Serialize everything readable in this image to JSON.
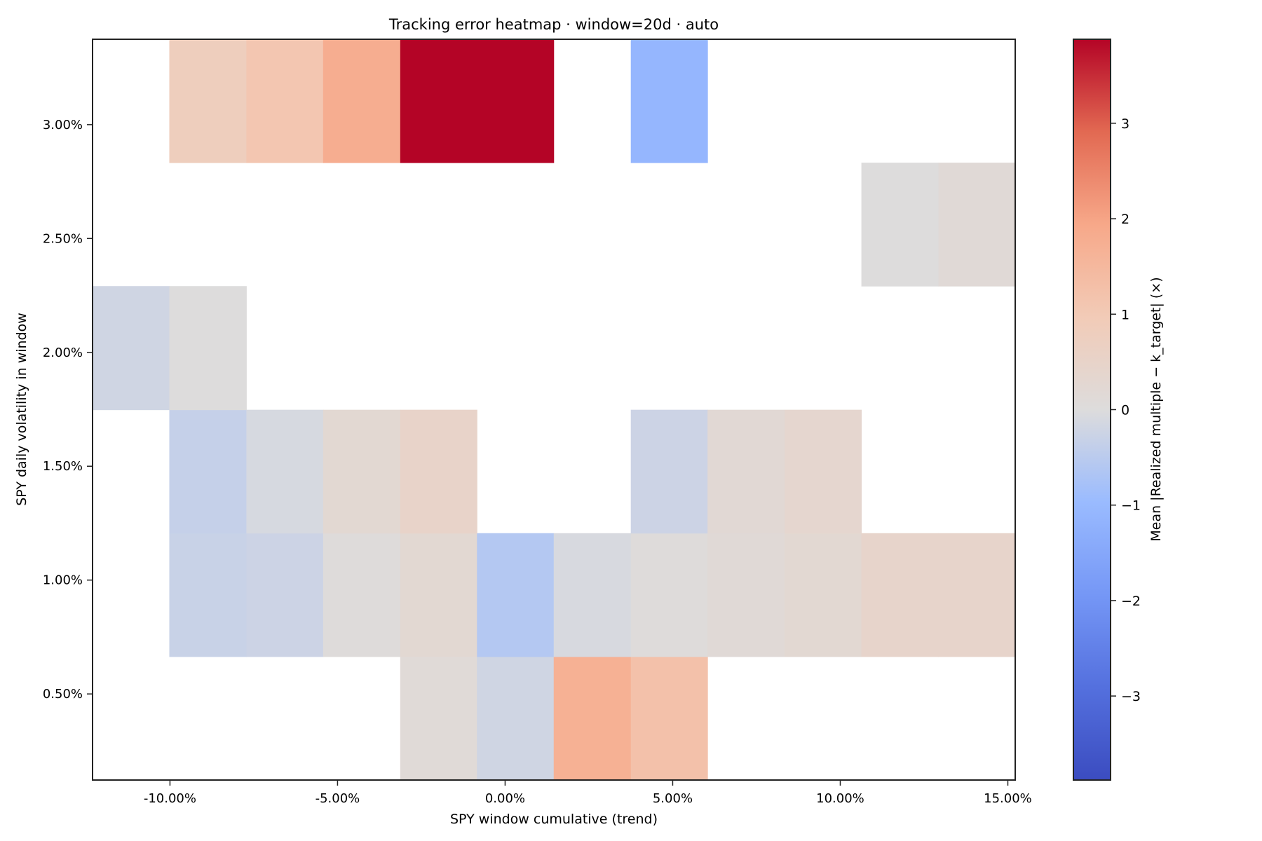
{
  "chart_data": {
    "type": "heatmap",
    "title": "Tracking error heatmap · window=20d · auto",
    "xlabel": "SPY window cumulative (trend)",
    "ylabel": "SPY daily volatility in window",
    "colorbar_label": "Mean |Realized multiple − k_target| (×)",
    "colormap": "coolwarm",
    "xlim": [
      -12.31,
      15.22
    ],
    "ylim": [
      0.122,
      3.375
    ],
    "clim": [
      -3.88,
      3.88
    ],
    "x_ticks": [
      -10,
      -5,
      0,
      5,
      10,
      15
    ],
    "x_tick_labels": [
      "-10.00%",
      "-5.00%",
      "0.00%",
      "5.00%",
      "10.00%",
      "15.00%"
    ],
    "y_ticks": [
      0.5,
      1.0,
      1.5,
      2.0,
      2.5,
      3.0
    ],
    "y_tick_labels": [
      "0.50%",
      "1.00%",
      "1.50%",
      "2.00%",
      "2.50%",
      "3.00%"
    ],
    "colorbar_ticks": [
      -3,
      -2,
      -1,
      0,
      1,
      2,
      3
    ],
    "colorbar_tick_labels": [
      "−3",
      "−2",
      "−1",
      "0",
      "1",
      "2",
      "3"
    ],
    "x_bin_edges": [
      -12.31,
      -10.02,
      -7.72,
      -5.43,
      -3.13,
      -0.84,
      1.45,
      3.75,
      6.04,
      8.34,
      10.63,
      12.93,
      15.22
    ],
    "y_bin_edges": [
      0.122,
      0.664,
      1.206,
      1.748,
      2.291,
      2.833,
      3.375
    ],
    "values": [
      [
        null,
        null,
        null,
        null,
        0.12,
        -0.2,
        1.7,
        1.25,
        null,
        null,
        null,
        null
      ],
      [
        null,
        -0.3,
        -0.25,
        0.05,
        0.25,
        -0.6,
        -0.08,
        0.05,
        0.15,
        0.25,
        0.45,
        0.45
      ],
      [
        null,
        -0.35,
        -0.1,
        0.25,
        0.5,
        null,
        null,
        -0.25,
        0.2,
        0.35,
        null,
        null
      ],
      [
        -0.2,
        0.0,
        null,
        null,
        null,
        null,
        null,
        null,
        null,
        null,
        null,
        null
      ],
      [
        null,
        null,
        null,
        null,
        null,
        null,
        null,
        null,
        null,
        null,
        0.0,
        0.15
      ],
      [
        null,
        0.8,
        1.1,
        1.8,
        3.88,
        3.88,
        null,
        -1.1,
        null,
        null,
        null,
        null
      ]
    ],
    "grid": false
  }
}
